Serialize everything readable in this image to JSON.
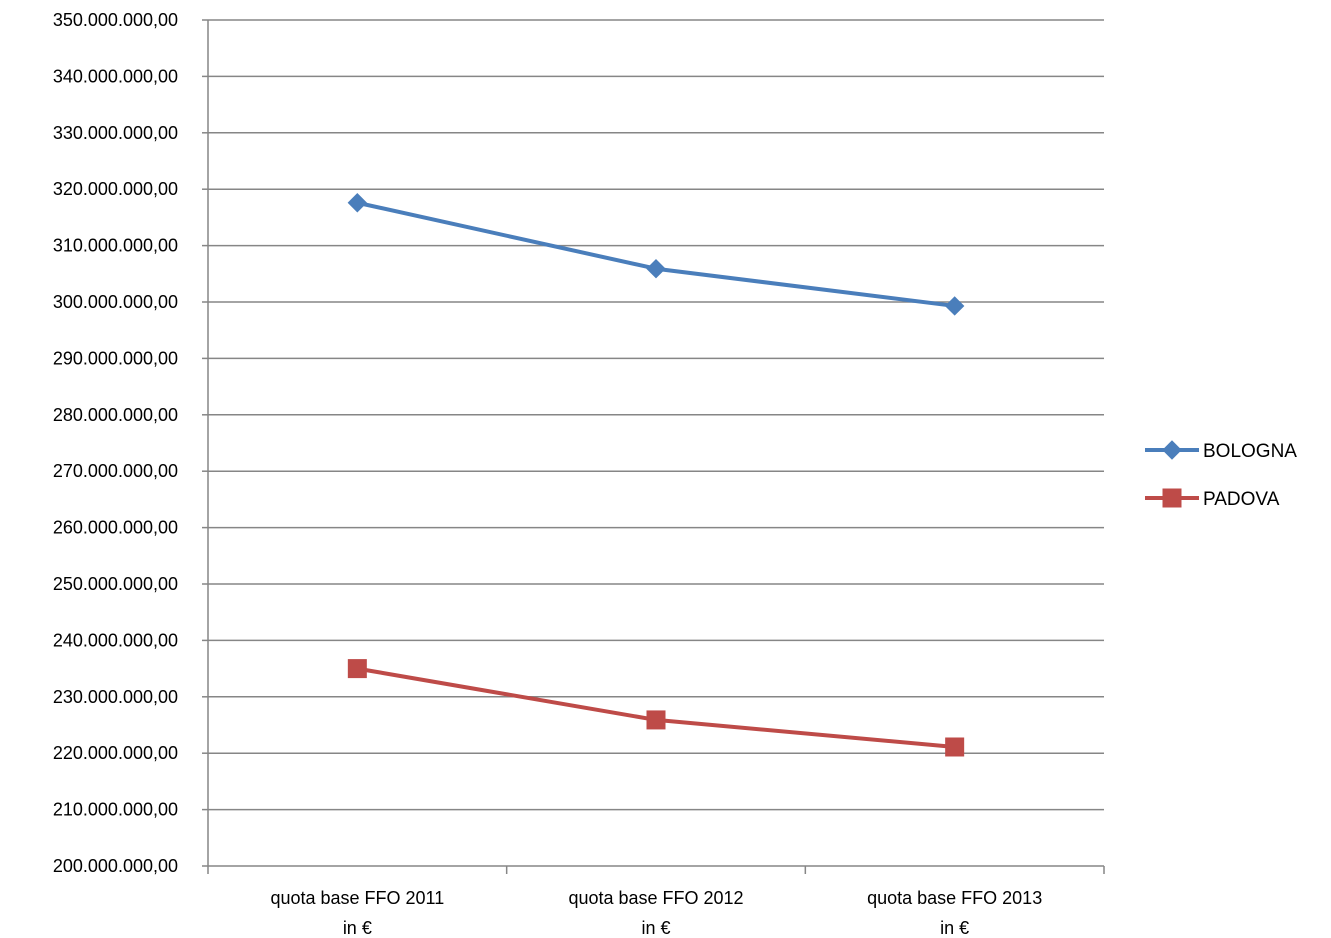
{
  "chart_data": {
    "type": "line",
    "title": "",
    "xlabel": "",
    "ylabel": "",
    "categories": [
      [
        "quota base FFO 2011",
        "in €"
      ],
      [
        "quota base FFO 2012",
        "in €"
      ],
      [
        "quota base FFO 2013",
        "in €"
      ]
    ],
    "y_ticks": [
      "200.000.000,00",
      "210.000.000,00",
      "220.000.000,00",
      "230.000.000,00",
      "240.000.000,00",
      "250.000.000,00",
      "260.000.000,00",
      "270.000.000,00",
      "280.000.000,00",
      "290.000.000,00",
      "300.000.000,00",
      "310.000.000,00",
      "320.000.000,00",
      "330.000.000,00",
      "340.000.000,00",
      "350.000.000,00"
    ],
    "ylim": [
      200000000,
      350000000
    ],
    "ystep": 10000000,
    "grid": true,
    "legend_position": "right",
    "series": [
      {
        "name": "BOLOGNA",
        "color": "#4a7ebb",
        "marker": "diamond",
        "values": [
          317600000,
          305900000,
          299300000
        ]
      },
      {
        "name": "PADOVA",
        "color": "#be4b48",
        "marker": "square",
        "values": [
          235000000,
          225900000,
          221100000
        ]
      }
    ]
  }
}
